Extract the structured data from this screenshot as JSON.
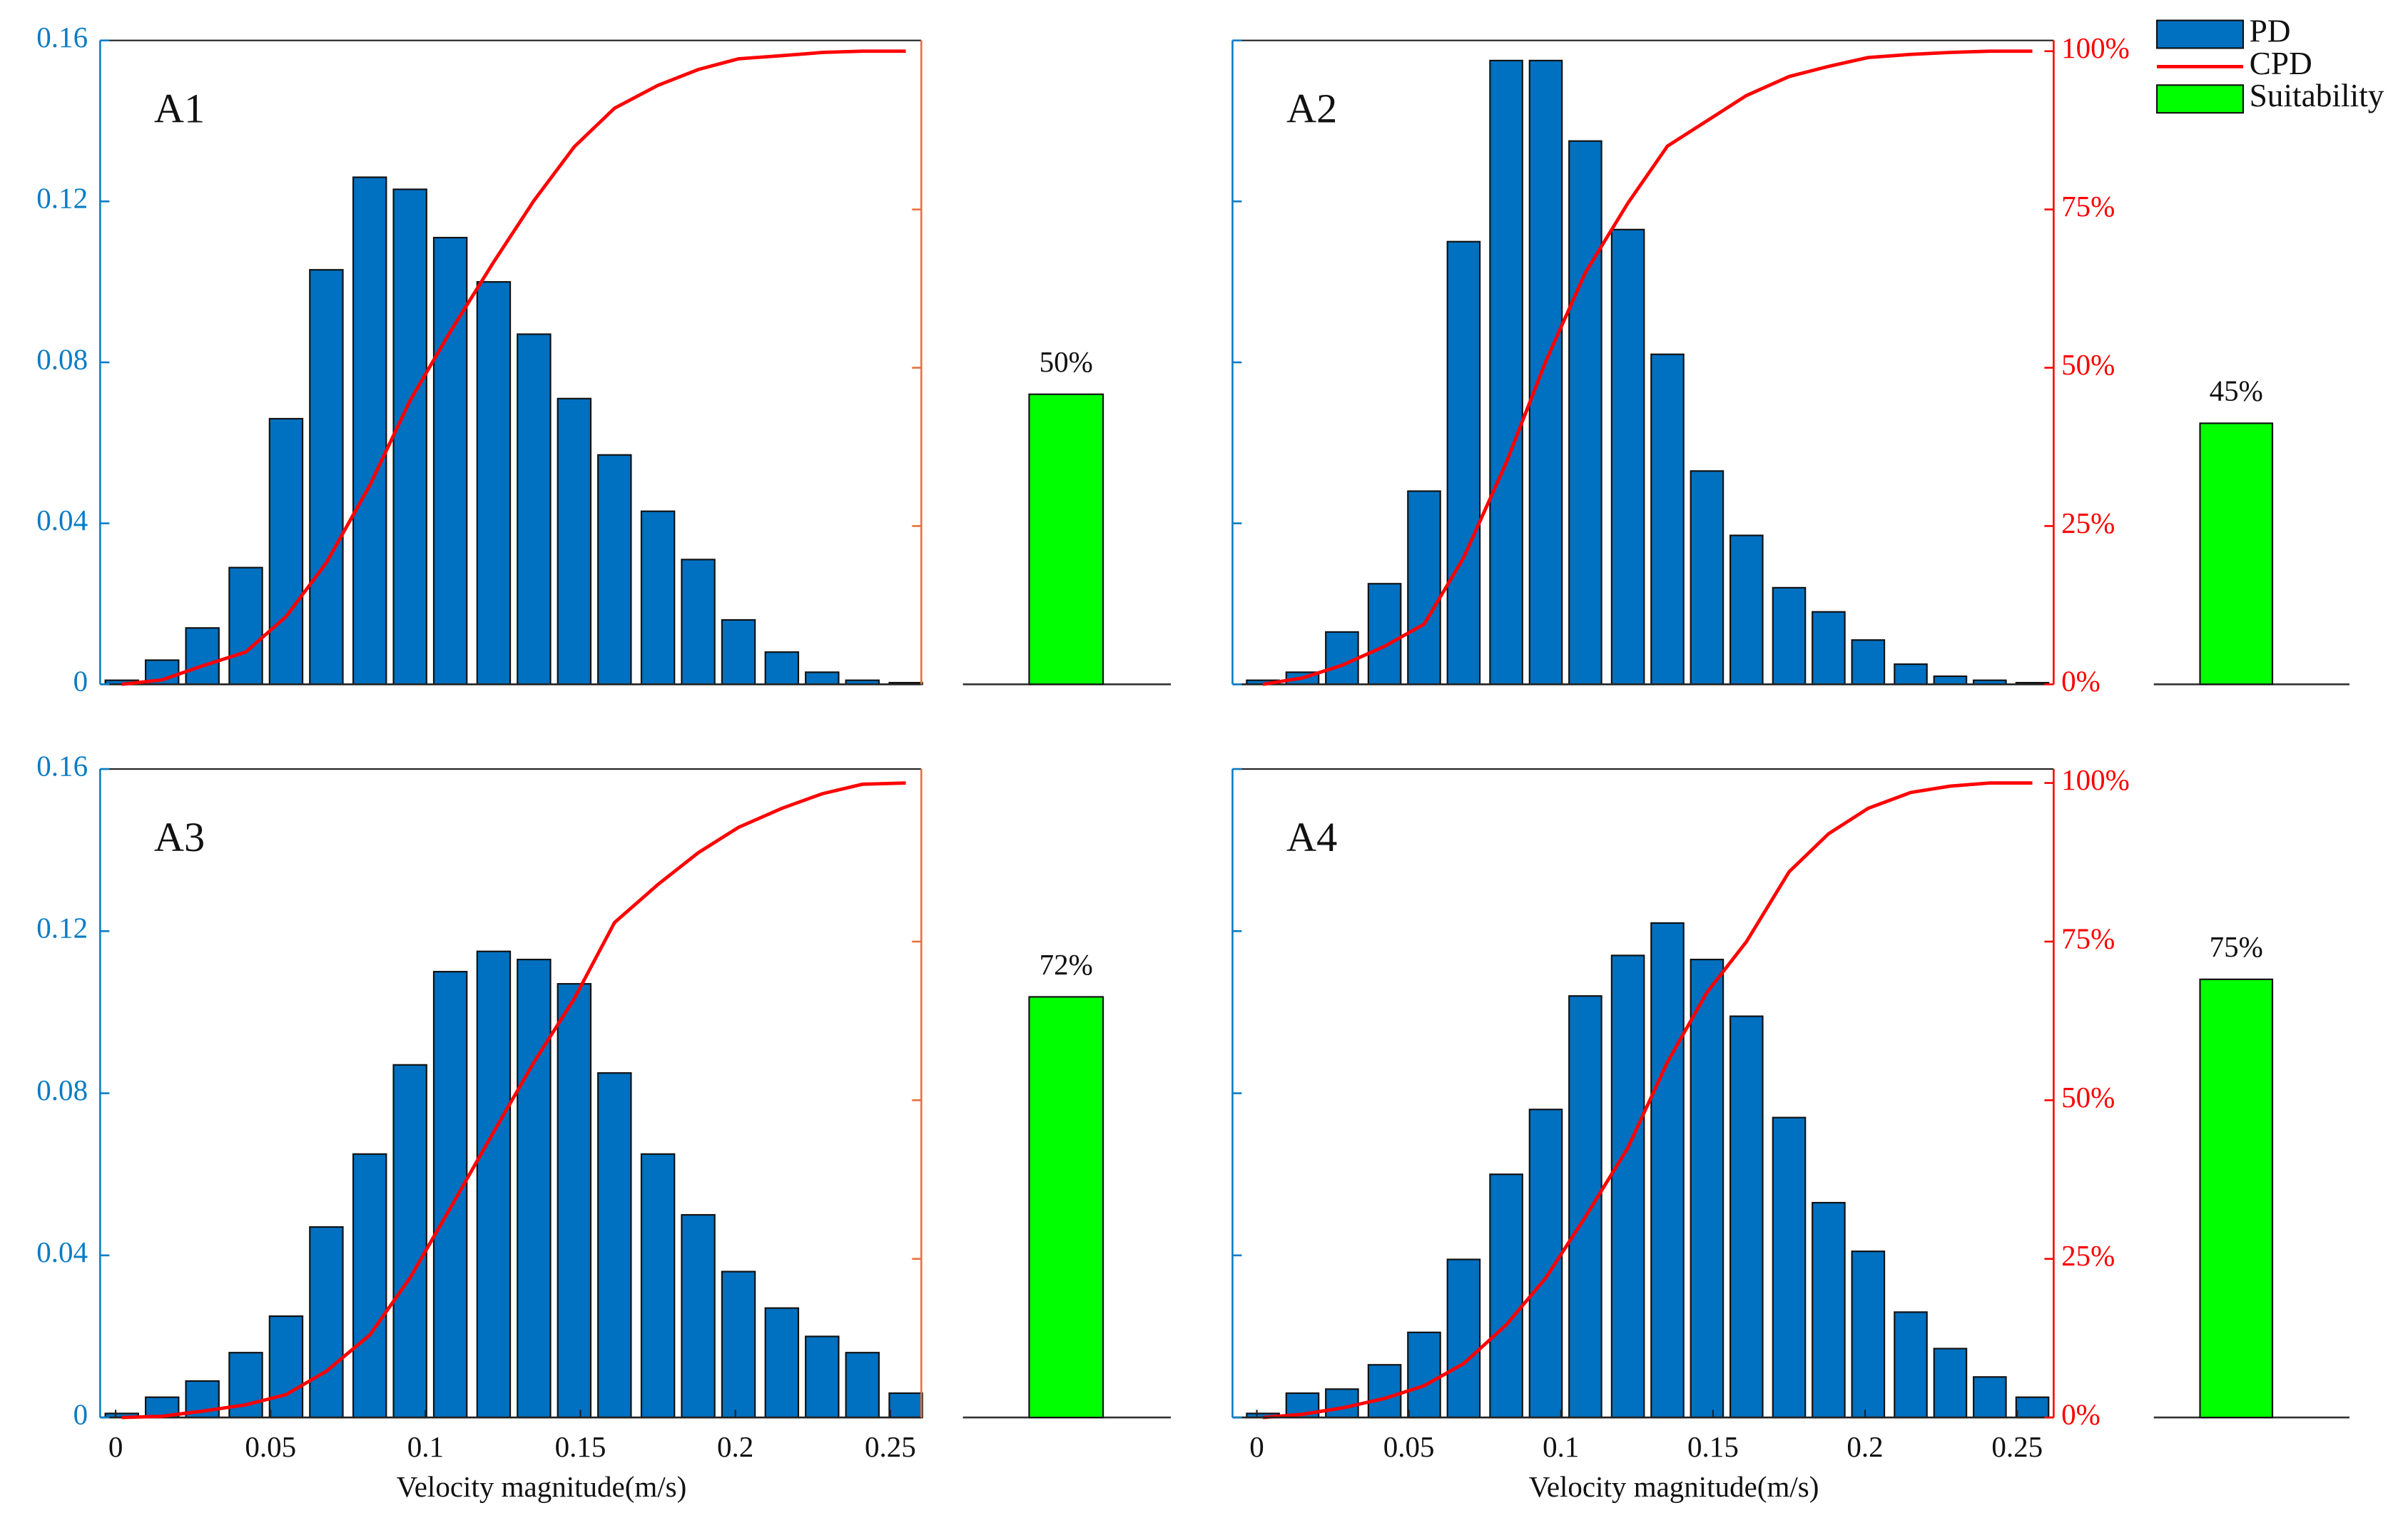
{
  "chart_data": [
    {
      "type": "bar",
      "title": "A1",
      "x": [
        0.002,
        0.015,
        0.028,
        0.042,
        0.055,
        0.068,
        0.082,
        0.095,
        0.108,
        0.122,
        0.135,
        0.148,
        0.161,
        0.175,
        0.188,
        0.201,
        0.215,
        0.228,
        0.241,
        0.255
      ],
      "series": [
        {
          "color": "#0070c0",
          "values": [
            0.001,
            0.006,
            0.014,
            0.029,
            0.066,
            0.103,
            0.126,
            0.123,
            0.111,
            0.1,
            0.087,
            0.071,
            0.057,
            0.043,
            0.031,
            0.016,
            0.008,
            0.003,
            0.001,
            0.0004
          ]
        },
        {
          "color": "#ff0000",
          "type": "line",
          "axis": "y2",
          "values": [
            0,
            0.7,
            2.9,
            5.1,
            10.7,
            19.2,
            31.4,
            44.8,
            55.7,
            66.7,
            76.4,
            84.9,
            91,
            94.6,
            97.1,
            98.8,
            99.3,
            99.8,
            100,
            100
          ]
        }
      ],
      "suitability": {
        "color": "#00ff00",
        "values": [
          50
        ],
        "value_labels": [
          "50%"
        ],
        "ylim": [
          0,
          111
        ]
      },
      "xlim": [
        -0.005,
        0.26
      ],
      "ylim": [
        0,
        0.16
      ],
      "yticks": [
        0,
        0.04,
        0.08,
        0.12,
        0.16
      ],
      "ytick_labels": true,
      "y_axis_color": "#0a7cc4",
      "y2lim": [
        0,
        101.7
      ],
      "y2ticks": [
        25,
        50,
        75
      ],
      "y2tick_labels": false,
      "y2_axis_color": "#e8703a"
    },
    {
      "type": "bar",
      "title": "A2",
      "x": [
        0.002,
        0.015,
        0.028,
        0.042,
        0.055,
        0.068,
        0.082,
        0.095,
        0.108,
        0.122,
        0.135,
        0.148,
        0.161,
        0.175,
        0.188,
        0.201,
        0.215,
        0.228,
        0.241,
        0.255
      ],
      "series": [
        {
          "name": "PD",
          "color": "#0070c0",
          "values": [
            0.001,
            0.003,
            0.013,
            0.025,
            0.048,
            0.11,
            0.155,
            0.155,
            0.135,
            0.113,
            0.082,
            0.053,
            0.037,
            0.024,
            0.018,
            0.011,
            0.005,
            0.002,
            0.001,
            0.0004
          ]
        },
        {
          "name": "CPD",
          "color": "#ff0000",
          "type": "line",
          "axis": "y2",
          "values": [
            0,
            1,
            3,
            6,
            9.5,
            20,
            35,
            51,
            65,
            76,
            85,
            89,
            93,
            96,
            97.6,
            99,
            99.5,
            99.8,
            100,
            100
          ]
        }
      ],
      "suitability": {
        "name": "Suitability",
        "color": "#00ff00",
        "values": [
          45
        ],
        "value_labels": [
          "45%"
        ],
        "ylim": [
          0,
          111
        ]
      },
      "legend": "upper right",
      "xlim": [
        -0.008,
        0.262
      ],
      "ylim": [
        0,
        0.16
      ],
      "yticks": [
        0,
        0.04,
        0.08,
        0.12,
        0.16
      ],
      "ytick_labels": false,
      "y_axis_color": "#0a7cc4",
      "y2lim": [
        0,
        101.7
      ],
      "y2ticks": [
        {
          "value": 0,
          "label": "0%"
        },
        {
          "value": 25,
          "label": "25%"
        },
        {
          "value": 50,
          "label": "50%"
        },
        {
          "value": 75,
          "label": "75%"
        },
        {
          "value": 100,
          "label": "100%"
        }
      ],
      "y2tick_labels": true,
      "y2_axis_color": "#ff0000"
    },
    {
      "type": "bar",
      "title": "A3",
      "x": [
        0.002,
        0.015,
        0.028,
        0.042,
        0.055,
        0.068,
        0.082,
        0.095,
        0.108,
        0.122,
        0.135,
        0.148,
        0.161,
        0.175,
        0.188,
        0.201,
        0.215,
        0.228,
        0.241,
        0.255
      ],
      "series": [
        {
          "color": "#0070c0",
          "values": [
            0.001,
            0.005,
            0.009,
            0.016,
            0.025,
            0.047,
            0.065,
            0.087,
            0.11,
            0.115,
            0.113,
            0.107,
            0.085,
            0.065,
            0.05,
            0.036,
            0.027,
            0.02,
            0.016,
            0.006
          ]
        },
        {
          "color": "#ff0000",
          "type": "line",
          "axis": "y2",
          "values": [
            0,
            0.2,
            1,
            2,
            3.6,
            7.3,
            13,
            22,
            33,
            45,
            56,
            66,
            78,
            84,
            89,
            93,
            96,
            98.3,
            99.8,
            100
          ]
        }
      ],
      "suitability": {
        "color": "#00ff00",
        "values": [
          72
        ],
        "value_labels": [
          "72%"
        ],
        "ylim": [
          0,
          111
        ]
      },
      "xlabel": "Velocity magnitude(m/s)",
      "xlim": [
        -0.005,
        0.26
      ],
      "xticks": [
        0,
        0.05,
        0.1,
        0.15,
        0.2,
        0.25
      ],
      "ylim": [
        0,
        0.16
      ],
      "yticks": [
        0,
        0.04,
        0.08,
        0.12,
        0.16
      ],
      "ytick_labels": true,
      "y_axis_color": "#0a7cc4",
      "y2lim": [
        0,
        102.2
      ],
      "y2ticks": [
        25,
        50,
        75
      ],
      "y2tick_labels": false,
      "y2_axis_color": "#e8703a"
    },
    {
      "type": "bar",
      "title": "A4",
      "x": [
        0.002,
        0.015,
        0.028,
        0.042,
        0.055,
        0.068,
        0.082,
        0.095,
        0.108,
        0.122,
        0.135,
        0.148,
        0.161,
        0.175,
        0.188,
        0.201,
        0.215,
        0.228,
        0.241,
        0.255
      ],
      "series": [
        {
          "color": "#0070c0",
          "values": [
            0.001,
            0.006,
            0.007,
            0.013,
            0.021,
            0.039,
            0.06,
            0.076,
            0.104,
            0.114,
            0.122,
            0.113,
            0.099,
            0.074,
            0.053,
            0.041,
            0.026,
            0.017,
            0.01,
            0.005
          ]
        },
        {
          "color": "#ff0000",
          "type": "line",
          "axis": "y2",
          "values": [
            0,
            0.5,
            1.5,
            3,
            5,
            8.5,
            14.6,
            22,
            31.6,
            42.5,
            56,
            67,
            75,
            86,
            92,
            96,
            98.5,
            99.5,
            100,
            100
          ]
        }
      ],
      "suitability": {
        "color": "#00ff00",
        "values": [
          75
        ],
        "value_labels": [
          "75%"
        ],
        "ylim": [
          0,
          111
        ]
      },
      "xlabel": "Velocity magnitude(m/s)",
      "xlim": [
        -0.008,
        0.262
      ],
      "xticks": [
        0,
        0.05,
        0.1,
        0.15,
        0.2,
        0.25
      ],
      "ylim": [
        0,
        0.16
      ],
      "yticks": [
        0,
        0.04,
        0.08,
        0.12,
        0.16
      ],
      "ytick_labels": false,
      "y_axis_color": "#0a7cc4",
      "y2lim": [
        0,
        102.2
      ],
      "y2ticks": [
        {
          "value": 0,
          "label": "0%"
        },
        {
          "value": 25,
          "label": "25%"
        },
        {
          "value": 50,
          "label": "50%"
        },
        {
          "value": 75,
          "label": "75%"
        },
        {
          "value": 100,
          "label": "100%"
        }
      ],
      "y2tick_labels": true,
      "y2_axis_color": "#ff0000"
    }
  ]
}
